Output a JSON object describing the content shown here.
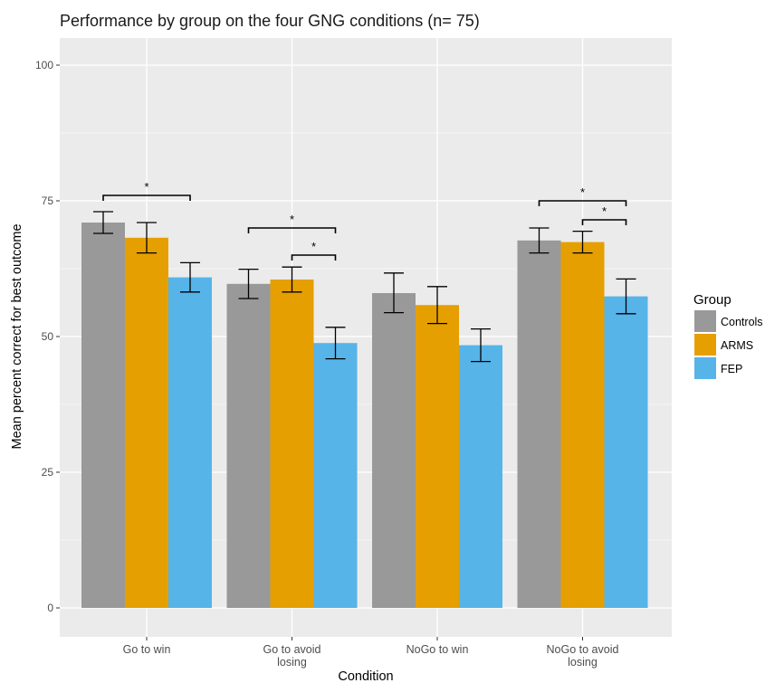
{
  "chart_data": {
    "type": "bar",
    "title": "Performance by group on the four GNG conditions (n= 75)",
    "xlabel": "Condition",
    "ylabel": "Mean percent correct for best outcome",
    "ylim": [
      0,
      100
    ],
    "yticks": [
      "0",
      "25",
      "50",
      "75",
      "100"
    ],
    "grid": true,
    "legend_position": "right",
    "legend_title": "Group",
    "categories": [
      "Go to win",
      "Go to avoid losing",
      "NoGo to win",
      "NoGo to avoid losing"
    ],
    "category_lines": [
      [
        "Go to win"
      ],
      [
        "Go to avoid",
        "losing"
      ],
      [
        "NoGo to win"
      ],
      [
        "NoGo to avoid",
        "losing"
      ]
    ],
    "series": [
      {
        "name": "Controls",
        "color": "#999999",
        "values": [
          71.0,
          59.7,
          58.0,
          67.7
        ],
        "err_low": [
          69.0,
          57.0,
          54.4,
          65.4
        ],
        "err_high": [
          73.0,
          62.4,
          61.7,
          70.0
        ]
      },
      {
        "name": "ARMS",
        "color": "#E69F00",
        "values": [
          68.2,
          60.5,
          55.8,
          67.4
        ],
        "err_low": [
          65.4,
          58.2,
          52.4,
          65.4
        ],
        "err_high": [
          71.0,
          62.8,
          59.2,
          69.4
        ]
      },
      {
        "name": "FEP",
        "color": "#56B4E9",
        "values": [
          60.9,
          48.8,
          48.4,
          57.4
        ],
        "err_low": [
          58.2,
          45.9,
          45.4,
          54.2
        ],
        "err_high": [
          63.6,
          51.7,
          51.4,
          60.6
        ]
      }
    ],
    "significance": [
      {
        "category": 0,
        "from": 0,
        "to": 2,
        "level": 76.0,
        "label": "*"
      },
      {
        "category": 1,
        "from": 0,
        "to": 2,
        "level": 70.0,
        "label": "*"
      },
      {
        "category": 1,
        "from": 1,
        "to": 2,
        "level": 65.0,
        "label": "*"
      },
      {
        "category": 3,
        "from": 0,
        "to": 2,
        "level": 75.0,
        "label": "*"
      },
      {
        "category": 3,
        "from": 1,
        "to": 2,
        "level": 71.5,
        "label": "*"
      }
    ]
  }
}
